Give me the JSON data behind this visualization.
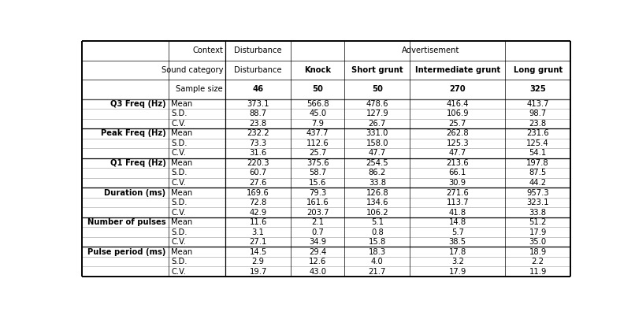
{
  "sections": [
    {
      "label": "Q3 Freq (Hz)",
      "rows": [
        [
          "Mean",
          "373.1",
          "566.8",
          "478.6",
          "416.4",
          "413.7"
        ],
        [
          "S.D.",
          "88.7",
          "45.0",
          "127.9",
          "106.9",
          "98.7"
        ],
        [
          "C.V.",
          "23.8",
          "7.9",
          "26.7",
          "25.7",
          "23.8"
        ]
      ]
    },
    {
      "label": "Peak Freq (Hz)",
      "rows": [
        [
          "Mean",
          "232.2",
          "437.7",
          "331.0",
          "262.8",
          "231.6"
        ],
        [
          "S.D.",
          "73.3",
          "112.6",
          "158.0",
          "125.3",
          "125.4"
        ],
        [
          "C.V.",
          "31.6",
          "25.7",
          "47.7",
          "47.7",
          "54.1"
        ]
      ]
    },
    {
      "label": "Q1 Freq (Hz)",
      "rows": [
        [
          "Mean",
          "220.3",
          "375.6",
          "254.5",
          "213.6",
          "197.8"
        ],
        [
          "S.D.",
          "60.7",
          "58.7",
          "86.2",
          "66.1",
          "87.5"
        ],
        [
          "C.V.",
          "27.6",
          "15.6",
          "33.8",
          "30.9",
          "44.2"
        ]
      ]
    },
    {
      "label": "Duration (ms)",
      "rows": [
        [
          "Mean",
          "169.6",
          "79.3",
          "126.8",
          "271.6",
          "957.3"
        ],
        [
          "S.D.",
          "72.8",
          "161.6",
          "134.6",
          "113.7",
          "323.1"
        ],
        [
          "C.V.",
          "42.9",
          "203.7",
          "106.2",
          "41.8",
          "33.8"
        ]
      ]
    },
    {
      "label": "Number of pulses",
      "rows": [
        [
          "Mean",
          "11.6",
          "2.1",
          "5.1",
          "14.8",
          "51.2"
        ],
        [
          "S.D.",
          "3.1",
          "0.7",
          "0.8",
          "5.7",
          "17.9"
        ],
        [
          "C.V.",
          "27.1",
          "34.9",
          "15.8",
          "38.5",
          "35.0"
        ]
      ]
    },
    {
      "label": "Pulse period (ms)",
      "rows": [
        [
          "Mean",
          "14.5",
          "29.4",
          "18.3",
          "17.8",
          "18.9"
        ],
        [
          "S.D.",
          "2.9",
          "12.6",
          "4.0",
          "3.2",
          "2.2"
        ],
        [
          "C.V.",
          "19.7",
          "43.0",
          "21.7",
          "17.9",
          "11.9"
        ]
      ]
    }
  ],
  "sample_sizes": [
    "46",
    "50",
    "50",
    "270",
    "325"
  ],
  "background_color": "#ffffff",
  "lw_thick": 1.4,
  "lw_med": 0.9,
  "lw_thin": 0.5,
  "lw_light": 0.4,
  "font_size": 7.2
}
